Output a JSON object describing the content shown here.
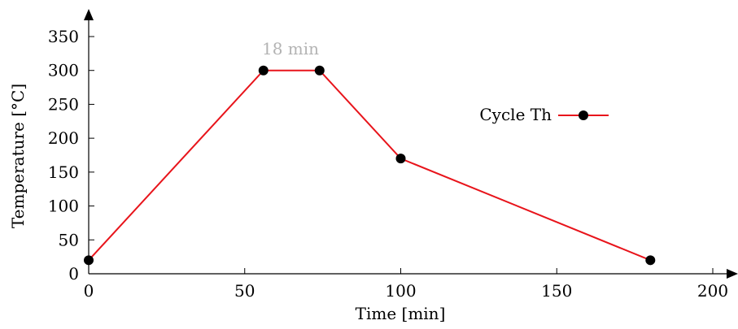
{
  "chart_data": {
    "type": "line",
    "xlabel": "Time [min]",
    "ylabel": "Temperature [°C]",
    "xlim": [
      0,
      200
    ],
    "ylim": [
      0,
      350
    ],
    "xticks": [
      0,
      50,
      100,
      150,
      200
    ],
    "yticks": [
      0,
      50,
      100,
      150,
      200,
      250,
      300,
      350
    ],
    "grid": false,
    "legend_position": "right",
    "series": [
      {
        "name": "Cycle Th",
        "color": "#e8141b",
        "marker": "circle",
        "x": [
          0,
          56,
          74,
          100,
          180
        ],
        "y": [
          20,
          300,
          300,
          170,
          20
        ]
      }
    ],
    "annotations": [
      {
        "text": "18 min",
        "x": 65,
        "y": 300
      }
    ]
  }
}
